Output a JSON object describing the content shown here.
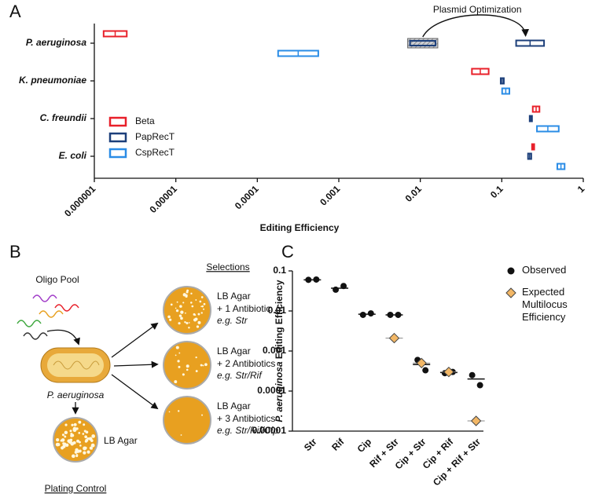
{
  "panel_labels": [
    "A",
    "B",
    "C"
  ],
  "chart_data": [
    {
      "type": "range_bar",
      "categories": [
        "P. aeruginosa",
        "K. pneumoniae",
        "C. freundii",
        "E. coli"
      ],
      "series": [
        {
          "name": "Beta",
          "color": "#e8202a",
          "low": [
            1.3e-06,
            0.043,
            0.24,
            0.235
          ],
          "high": [
            2.5e-06,
            0.069,
            0.29,
            0.25
          ]
        },
        {
          "name": "PapRecT",
          "color": "#1c3f7a",
          "low": [
            0.15,
            0.097,
            0.22,
            0.21
          ],
          "high": [
            0.33,
            0.106,
            0.235,
            0.23
          ]
        },
        {
          "name": "CspRecT",
          "color": "#2a8ce6",
          "low": [
            0.00018,
            0.101,
            0.27,
            0.48
          ],
          "high": [
            0.00056,
            0.124,
            0.5,
            0.59
          ]
        }
      ],
      "annotation": {
        "text": "Plasmid Optimization",
        "category": 0,
        "series": 1,
        "low": 0.007,
        "high": 0.0164
      },
      "xlabel": "Editing Efficiency",
      "log_x": true,
      "xlim": [
        1e-06,
        1
      ],
      "xticks": [
        1e-06,
        1e-05,
        0.0001,
        0.001,
        0.01,
        0.1,
        1
      ],
      "legend": "lower left"
    },
    {
      "type": "dot_plot",
      "categories": [
        "Str",
        "Rif",
        "Cip",
        "Rif + Str",
        "Cip + Str",
        "Cip + Rif",
        "Cip + Rif + Str"
      ],
      "ylabel_italic": "P. aeruginosa",
      "ylabel": " Editing Efficiency",
      "log_y": true,
      "ylim": [
        1e-05,
        0.1
      ],
      "yticks": [
        0.1,
        0.01,
        0.001,
        0.0001,
        1e-05
      ],
      "series": [
        {
          "name": "Observed",
          "color": "#111111",
          "marker": "circle",
          "values": [
            [
              0.06,
              0.061
            ],
            [
              0.034,
              0.042
            ],
            [
              0.008,
              0.0087
            ],
            [
              0.008,
              0.008
            ],
            [
              0.0006,
              0.00033
            ],
            [
              0.00028,
              0.0003
            ],
            [
              0.00025,
              0.00014
            ]
          ],
          "mean_values": [
            0.06,
            0.037,
            0.0083,
            0.008,
            0.00046,
            0.00029,
            0.0002
          ]
        },
        {
          "name": "Expected Multilocus Efficiency",
          "color": "#f2b766",
          "marker": "diamond",
          "values": [
            null,
            null,
            null,
            0.0021,
            0.0005,
            0.0003,
            1.8e-05
          ]
        }
      ],
      "legend": "upper right"
    }
  ],
  "diagram": {
    "oligo_pool": "Oligo Pool",
    "organism": "P. aeruginosa",
    "control_plate": "LB Agar",
    "control_label": "Plating Control",
    "selections_title": "Selections",
    "selections": [
      {
        "medium": "LB Agar",
        "antibiotics": "+ 1 Antibiotic",
        "example": "e.g. Str"
      },
      {
        "medium": "LB Agar",
        "antibiotics": "+ 2 Antibiotics",
        "example": "e.g. Str/Rif"
      },
      {
        "medium": "LB Agar",
        "antibiotics": "+ 3 Antibiotics",
        "example": "e.g. Str/Rif/Cip"
      }
    ]
  }
}
